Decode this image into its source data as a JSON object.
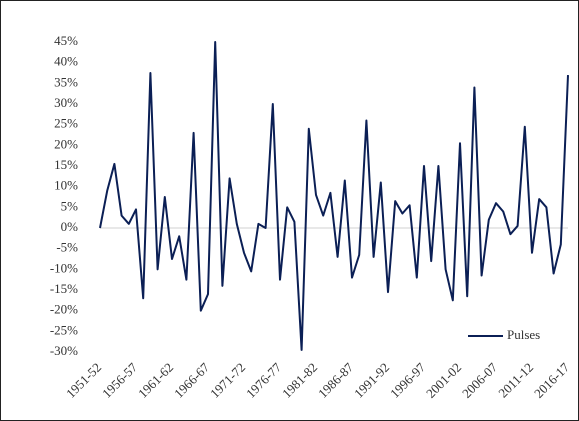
{
  "chart_data": {
    "type": "line",
    "categories": [
      "1951-52",
      null,
      null,
      null,
      null,
      "1956-57",
      null,
      null,
      null,
      null,
      "1961-62",
      null,
      null,
      null,
      null,
      "1966-67",
      null,
      null,
      null,
      null,
      "1971-72",
      null,
      null,
      null,
      null,
      "1976-77",
      null,
      null,
      null,
      null,
      "1981-82",
      null,
      null,
      null,
      null,
      "1986-87",
      null,
      null,
      null,
      null,
      "1991-92",
      null,
      null,
      null,
      null,
      "1996-97",
      null,
      null,
      null,
      null,
      "2001-02",
      null,
      null,
      null,
      null,
      "2006-07",
      null,
      null,
      null,
      null,
      "2011-12",
      null,
      null,
      null,
      null,
      "2016-17"
    ],
    "series": [
      {
        "name": "Pulses",
        "color": "#0b1f55",
        "values": [
          0,
          9,
          15.5,
          3,
          1,
          4.5,
          -17,
          37.5,
          -10,
          7.5,
          -7.5,
          -2,
          -12.5,
          23,
          -20,
          -16,
          45,
          -14,
          12,
          1,
          -6,
          -10.5,
          1,
          0,
          30,
          -12.5,
          5,
          1.5,
          -29.5,
          24,
          8,
          3,
          8.5,
          -7,
          11.5,
          -12,
          -6.5,
          26,
          -7,
          11,
          -15.5,
          6.5,
          3.5,
          5.5,
          -12,
          15,
          -8,
          15,
          -10,
          -17.5,
          20.5,
          -16.5,
          34,
          -11.5,
          2,
          6,
          4,
          -1.5,
          0.5,
          24.5,
          -6,
          7,
          5,
          -11,
          -4,
          37
        ]
      }
    ],
    "ylim": [
      -30,
      45
    ],
    "yticks": [
      {
        "value": -30,
        "label": "-30%"
      },
      {
        "value": -25,
        "label": "-25%"
      },
      {
        "value": -20,
        "label": "-20%"
      },
      {
        "value": -15,
        "label": "-15%"
      },
      {
        "value": -10,
        "label": "-10%"
      },
      {
        "value": -5,
        "label": "-5%"
      },
      {
        "value": 0,
        "label": "0%"
      },
      {
        "value": 5,
        "label": "5%"
      },
      {
        "value": 10,
        "label": "10%"
      },
      {
        "value": 15,
        "label": "15%"
      },
      {
        "value": 20,
        "label": "20%"
      },
      {
        "value": 25,
        "label": "25%"
      },
      {
        "value": 30,
        "label": "30%"
      },
      {
        "value": 35,
        "label": "35%"
      },
      {
        "value": 40,
        "label": "40%"
      },
      {
        "value": 45,
        "label": "45%"
      }
    ],
    "legend": "lower right"
  }
}
